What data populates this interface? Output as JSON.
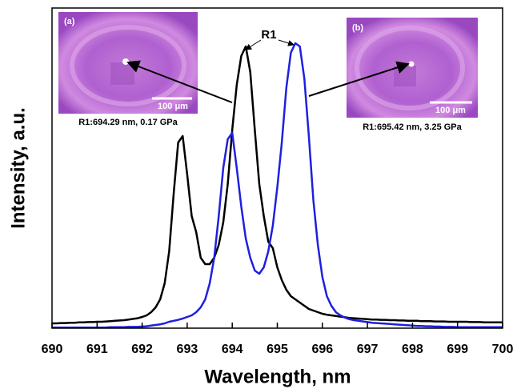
{
  "chart_data": {
    "type": "line",
    "x_label": "Wavelength, nm",
    "y_label": "Intensity, a.u.",
    "annotation": "R1",
    "insets": [
      {
        "label": "(a)",
        "scale": "100 μm",
        "caption": "R1:694.29 nm, 0.17 GPa"
      },
      {
        "label": "(b)",
        "scale": "100 μm",
        "caption": "R1:695.42 nm, 3.25 GPa"
      }
    ],
    "x": [
      690,
      690.1,
      690.2,
      690.3,
      690.4,
      690.5,
      690.6,
      690.7,
      690.8,
      690.9,
      691,
      691.1,
      691.2,
      691.3,
      691.4,
      691.5,
      691.6,
      691.7,
      691.8,
      691.9,
      692,
      692.1,
      692.2,
      692.3,
      692.4,
      692.5,
      692.6,
      692.7,
      692.8,
      692.9,
      693,
      693.1,
      693.2,
      693.3,
      693.4,
      693.5,
      693.6,
      693.7,
      693.8,
      693.9,
      694,
      694.1,
      694.2,
      694.3,
      694.4,
      694.5,
      694.6,
      694.7,
      694.8,
      694.9,
      695,
      695.1,
      695.2,
      695.3,
      695.4,
      695.5,
      695.6,
      695.7,
      695.8,
      695.9,
      696,
      696.1,
      696.2,
      696.3,
      696.4,
      696.5,
      696.6,
      696.7,
      696.8,
      696.9,
      697,
      697.1,
      697.2,
      697.3,
      697.4,
      697.5,
      697.6,
      697.7,
      697.8,
      697.9,
      698,
      698.1,
      698.2,
      698.3,
      698.4,
      698.5,
      698.6,
      698.7,
      698.8,
      698.9,
      699,
      699.1,
      699.2,
      699.3,
      699.4,
      699.5,
      699.6,
      699.7,
      699.8,
      699.9,
      700
    ],
    "series": [
      {
        "color": "#000000",
        "values": [
          1.5,
          1.5,
          1.6,
          1.6,
          1.7,
          1.7,
          1.8,
          1.8,
          1.9,
          1.9,
          2,
          2,
          2.1,
          2.2,
          2.3,
          2.4,
          2.5,
          2.7,
          2.9,
          3.1,
          3.5,
          4,
          5,
          6.5,
          9,
          14,
          24,
          42,
          58,
          60,
          48,
          35,
          30,
          22,
          20,
          20,
          22,
          26,
          33,
          45,
          62,
          76,
          85,
          88,
          80,
          62,
          45,
          35,
          27,
          25,
          19,
          15,
          12,
          10,
          9,
          8,
          7,
          6,
          5.5,
          5,
          4.5,
          4.2,
          4,
          3.8,
          3.6,
          3.4,
          3.2,
          3.1,
          3,
          2.9,
          2.8,
          2.7,
          2.7,
          2.6,
          2.6,
          2.5,
          2.5,
          2.4,
          2.4,
          2.3,
          2.3,
          2.3,
          2.2,
          2.2,
          2.2,
          2.1,
          2.1,
          2.1,
          2,
          2,
          2,
          2,
          2,
          1.9,
          1.9,
          1.9,
          1.8,
          1.8,
          1.8,
          1.8,
          1.8
        ]
      },
      {
        "color": "#1f1fe0",
        "values": [
          0.2,
          0.2,
          0.2,
          0.2,
          0.2,
          0.2,
          0.2,
          0.2,
          0.2,
          0.2,
          0.2,
          0.2,
          0.2,
          0.3,
          0.3,
          0.3,
          0.3,
          0.4,
          0.4,
          0.4,
          0.5,
          0.6,
          0.8,
          1,
          1.2,
          1.5,
          2,
          2.3,
          2.6,
          3,
          3.5,
          4,
          5,
          6.5,
          9,
          14,
          22,
          35,
          50,
          59,
          61,
          50,
          38,
          28,
          22,
          18,
          17,
          19,
          24,
          32,
          44,
          58,
          75,
          86,
          89,
          88,
          78,
          60,
          40,
          26,
          16,
          10,
          7,
          5,
          4,
          3.3,
          2.8,
          2.5,
          2.3,
          2.1,
          1.9,
          1.7,
          1.6,
          1.5,
          1.4,
          1.3,
          1.2,
          1.1,
          1,
          0.9,
          0.8,
          0.7,
          0.7,
          0.6,
          0.6,
          0.5,
          0.5,
          0.4,
          0.4,
          0.4,
          0.3,
          0.3,
          0.3,
          0.3,
          0.3,
          0.3,
          0.3,
          0.3,
          0.3,
          0.3,
          0.3
        ]
      }
    ],
    "xlim": [
      690,
      700
    ],
    "ylim": [
      0,
      100
    ],
    "xticks": [
      690,
      691,
      692,
      693,
      694,
      695,
      696,
      697,
      698,
      699,
      700
    ]
  }
}
